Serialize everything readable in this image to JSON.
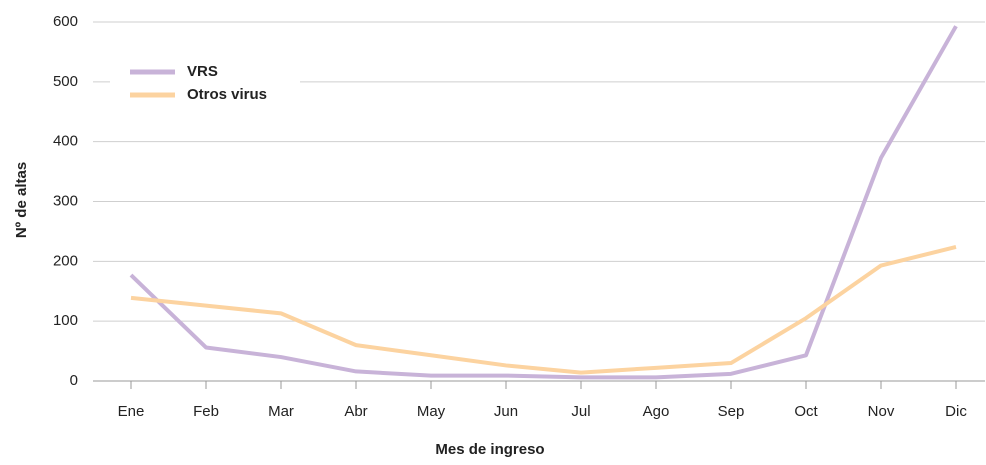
{
  "chart_data": {
    "type": "line",
    "x_label": "Mes de ingreso",
    "y_label": "Nº de altas",
    "categories": [
      "Ene",
      "Feb",
      "Mar",
      "Abr",
      "May",
      "Jun",
      "Jul",
      "Ago",
      "Sep",
      "Oct",
      "Nov",
      "Dic"
    ],
    "series": [
      {
        "name": "VRS",
        "color": "#c8b3d8",
        "values": [
          177,
          56,
          40,
          16,
          9,
          9,
          6,
          6,
          12,
          43,
          373,
          593
        ]
      },
      {
        "name": "Otros virus",
        "color": "#fcd3a0",
        "values": [
          139,
          126,
          113,
          60,
          43,
          26,
          14,
          22,
          30,
          105,
          193,
          224
        ]
      }
    ],
    "ylim": [
      0,
      600
    ],
    "yticks": [
      0,
      100,
      200,
      300,
      400,
      500,
      600
    ],
    "grid": true,
    "legend": "upper-left"
  }
}
